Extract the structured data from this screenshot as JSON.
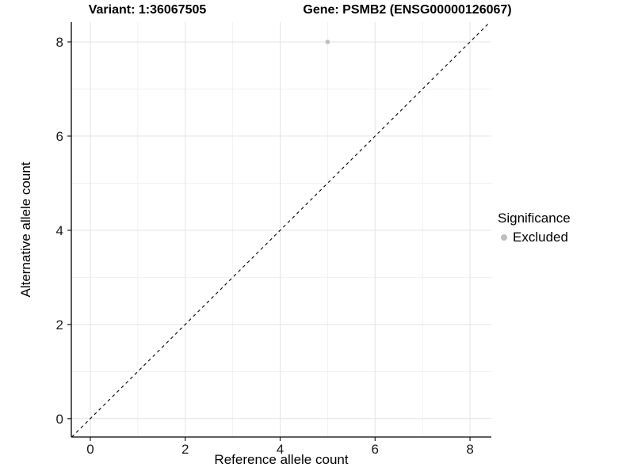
{
  "chart_data": {
    "type": "scatter",
    "title_left": "Variant: 1:36067505",
    "title_right": "Gene: PSMB2 (ENSG00000126067)",
    "xlabel": "Reference allele count",
    "ylabel": "Alternative allele count",
    "xlim": [
      -0.4,
      8.45
    ],
    "ylim": [
      -0.39,
      8.42
    ],
    "xticks": [
      0,
      2,
      4,
      6,
      8
    ],
    "yticks": [
      0,
      2,
      4,
      6,
      8
    ],
    "minor_xticks": [
      1,
      3,
      5,
      7
    ],
    "minor_yticks": [
      1,
      3,
      5,
      7
    ],
    "grid": true,
    "series": [
      {
        "name": "Excluded",
        "color": "#bebebe",
        "points": [
          [
            5,
            8
          ]
        ]
      }
    ],
    "abline": {
      "slope": 1,
      "intercept": 0,
      "style": "dashed",
      "color": "#000000"
    },
    "legend": {
      "position": "right",
      "title": "Significance",
      "entries": [
        {
          "label": "Excluded",
          "color": "#bebebe"
        }
      ]
    }
  },
  "colors": {
    "major_grid": "#e3e3e3",
    "minor_grid": "#f0f0f0",
    "axis_line": "#000000",
    "tick_mark": "#1a1a1a",
    "tick_label": "#1a1a1a",
    "point": "#bebebe"
  }
}
